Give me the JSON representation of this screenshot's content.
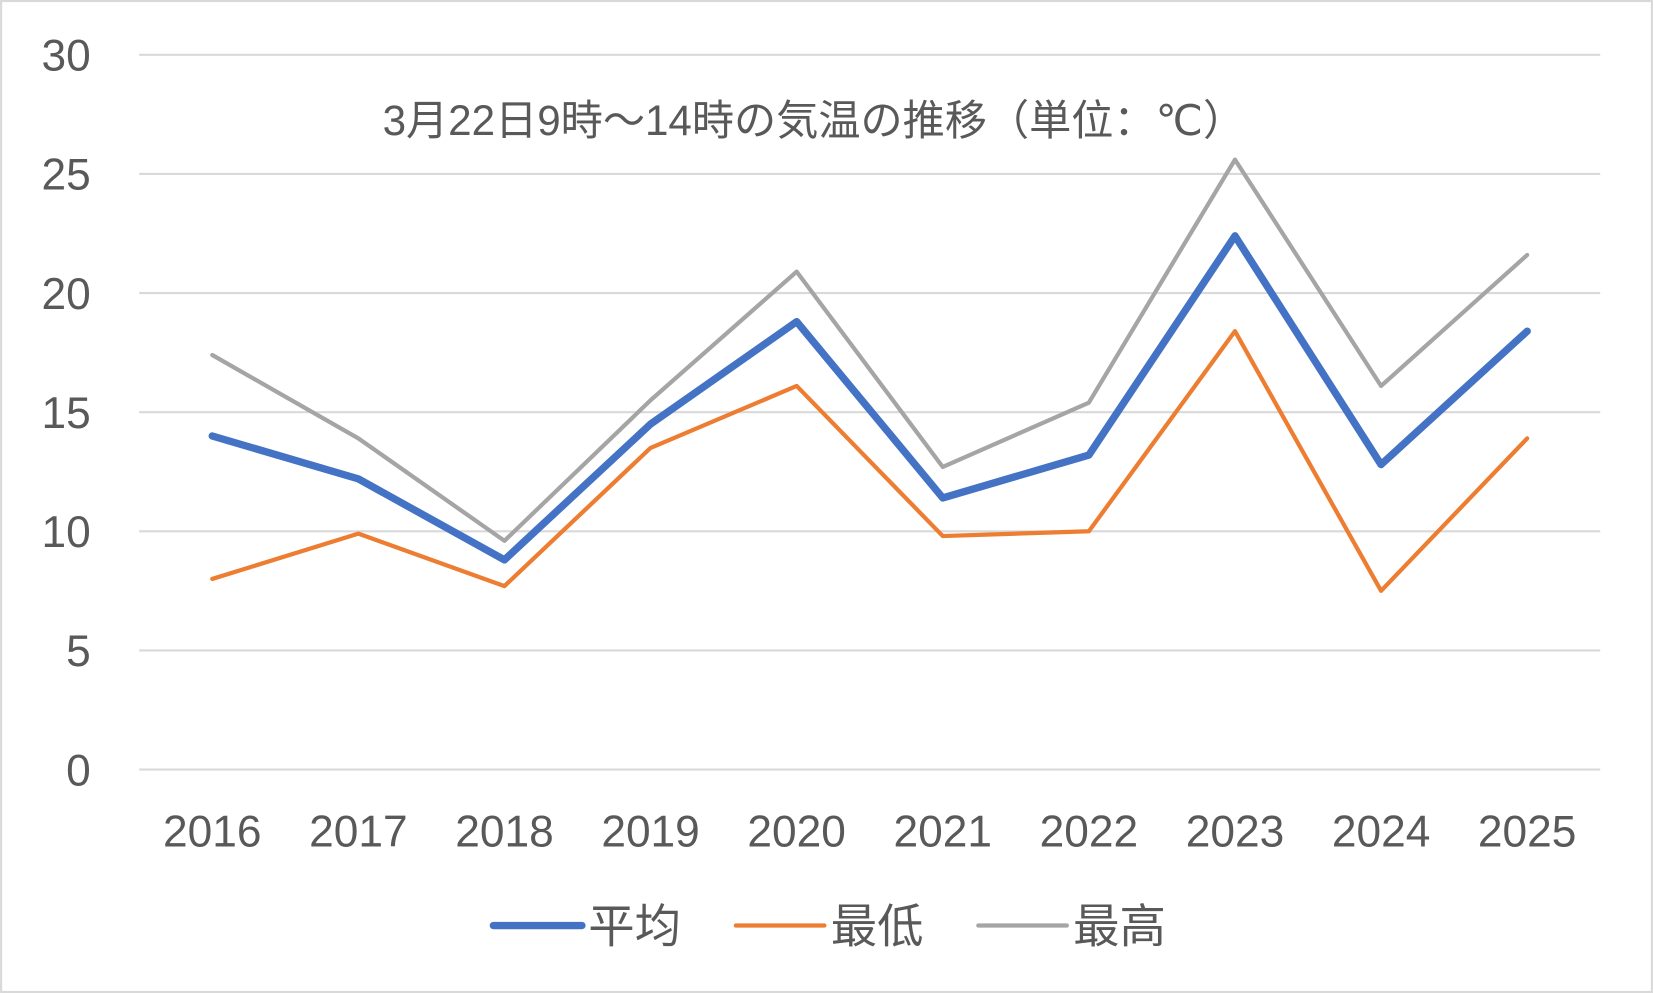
{
  "chart_data": {
    "type": "line",
    "title": "3月22日9時～14時の気温の推移（単位：℃）",
    "xlabel": "",
    "ylabel": "",
    "categories": [
      "2016",
      "2017",
      "2018",
      "2019",
      "2020",
      "2021",
      "2022",
      "2023",
      "2024",
      "2025"
    ],
    "ylim": [
      0,
      30
    ],
    "yticks": [
      "0",
      "5",
      "10",
      "15",
      "20",
      "25",
      "30"
    ],
    "grid": true,
    "legend_position": "bottom",
    "series": [
      {
        "name": "平均",
        "color": "#4472c4",
        "values": [
          14.0,
          12.2,
          8.8,
          14.5,
          18.8,
          11.4,
          13.2,
          22.4,
          12.8,
          18.4
        ]
      },
      {
        "name": "最低",
        "color": "#ed7d31",
        "values": [
          8.0,
          9.9,
          7.7,
          13.5,
          16.1,
          9.8,
          10.0,
          18.4,
          7.5,
          13.9
        ]
      },
      {
        "name": "最高",
        "color": "#a5a5a5",
        "values": [
          17.4,
          13.9,
          9.6,
          15.5,
          20.9,
          12.7,
          15.4,
          25.6,
          16.1,
          21.6
        ]
      }
    ]
  }
}
